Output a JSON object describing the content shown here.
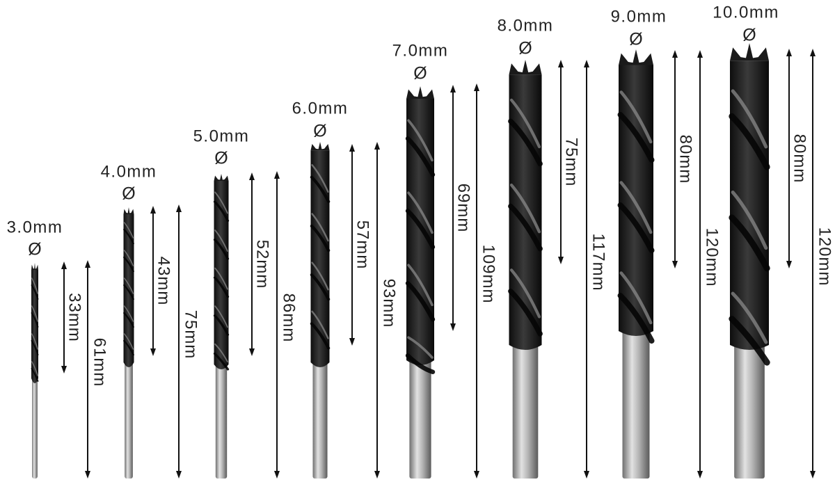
{
  "diameter_symbol": "Ø",
  "colors": {
    "background": "#ffffff",
    "flute": "#1c1c1c",
    "flute_highlight": "#7a7a7a",
    "shank": "#a9a9a9",
    "shank_highlight": "#e2e2e2",
    "text": "#222222",
    "dimension_line": "#111111"
  },
  "bits": [
    {
      "size": "3.0mm",
      "flute_length": "33mm",
      "total_length": "61mm"
    },
    {
      "size": "4.0mm",
      "flute_length": "43mm",
      "total_length": "75mm"
    },
    {
      "size": "5.0mm",
      "flute_length": "52mm",
      "total_length": "86mm"
    },
    {
      "size": "6.0mm",
      "flute_length": "57mm",
      "total_length": "93mm"
    },
    {
      "size": "7.0mm",
      "flute_length": "69mm",
      "total_length": "109mm"
    },
    {
      "size": "8.0mm",
      "flute_length": "75mm",
      "total_length": "117mm"
    },
    {
      "size": "9.0mm",
      "flute_length": "80mm",
      "total_length": "120mm"
    },
    {
      "size": "10.0mm",
      "flute_length": "80mm",
      "total_length": "120mm"
    }
  ]
}
